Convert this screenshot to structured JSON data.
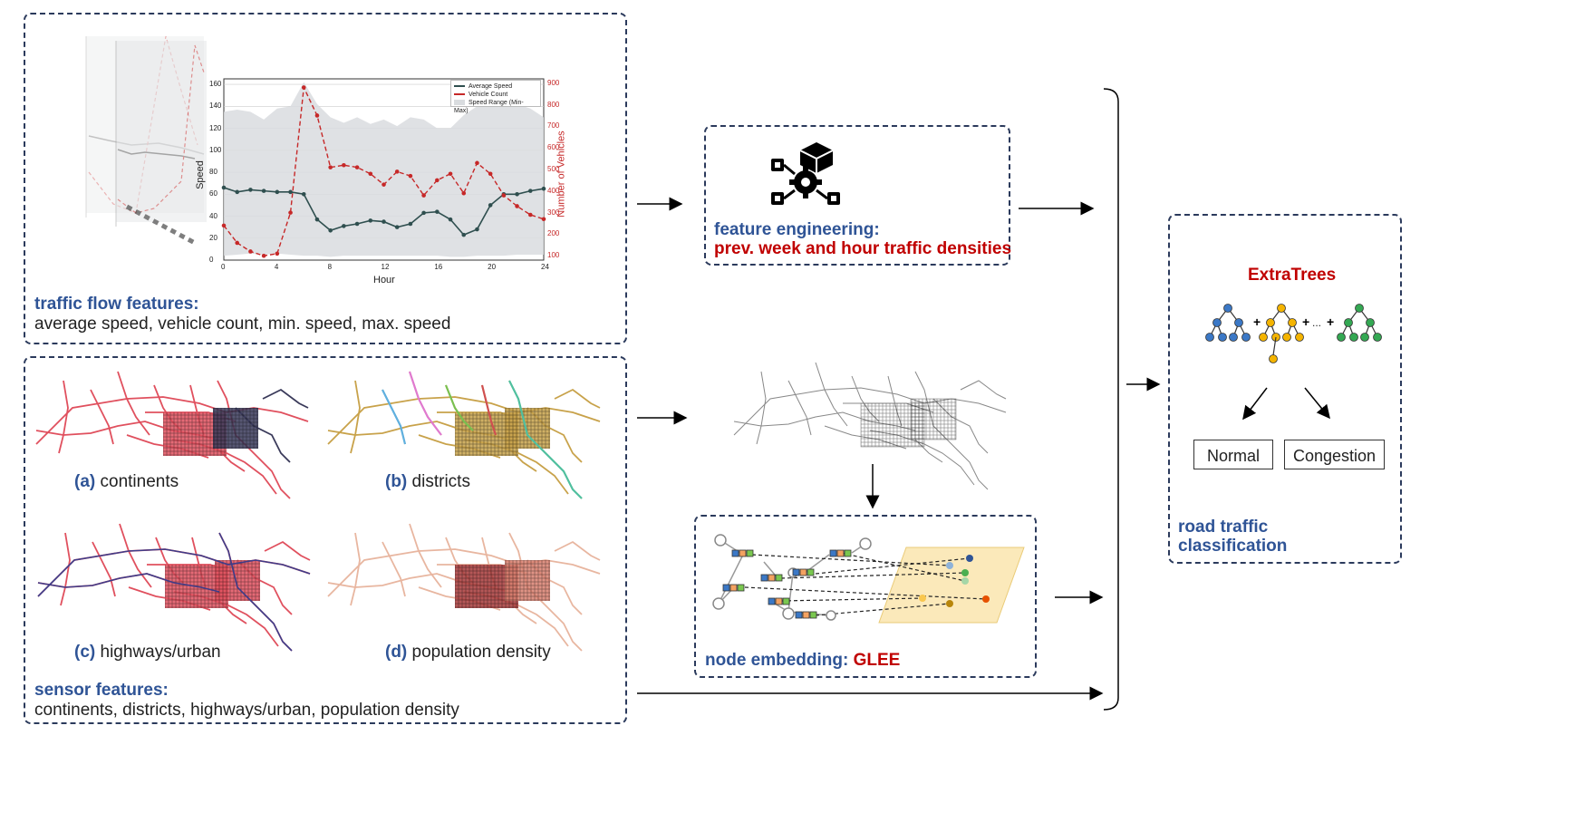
{
  "traffic_box": {
    "title": "traffic flow features:",
    "items": "average speed, vehicle count, min. speed, max. speed"
  },
  "feature_eng": {
    "title": "feature engineering:",
    "subtitle": "prev. week and hour traffic densities"
  },
  "sensor_box": {
    "title": "sensor features:",
    "items": "continents, districts, highways/urban, population density",
    "maps": [
      {
        "tag": "(a)",
        "label": "continents"
      },
      {
        "tag": "(b)",
        "label": "districts"
      },
      {
        "tag": "(c)",
        "label": "highways/urban"
      },
      {
        "tag": "(d)",
        "label": "population density"
      }
    ]
  },
  "node_embedding": {
    "title": "node embedding:",
    "method": "GLEE"
  },
  "classification": {
    "model": "ExtraTrees",
    "dots": "...",
    "class_normal": "Normal",
    "class_congestion": "Congestion",
    "title_line1": "road traffic",
    "title_line2": "classification"
  },
  "chart": {
    "xlabel": "Hour",
    "ylabel_left": "Speed",
    "ylabel_right": "Number of Vehicles",
    "x_ticks": [
      "0",
      "4",
      "8",
      "12",
      "16",
      "20",
      "24"
    ],
    "y_ticks_left": [
      "0",
      "20",
      "40",
      "60",
      "80",
      "100",
      "120",
      "140",
      "160"
    ],
    "y_ticks_right": [
      "100",
      "200",
      "300",
      "400",
      "500",
      "600",
      "700",
      "800",
      "900"
    ],
    "legend": [
      "Average Speed",
      "Vehicle Count",
      "Speed Range (Min-Max)"
    ],
    "colors": {
      "speed": "#2f4f4f",
      "count": "#c62828",
      "range": "#d9dcdf"
    }
  },
  "chart_data": {
    "type": "line",
    "xlabel": "Hour",
    "ylabel": "Speed",
    "y2label": "Number of Vehicles",
    "xlim": [
      0,
      24
    ],
    "ylim": [
      0,
      165
    ],
    "y2lim": [
      80,
      920
    ],
    "series": [
      {
        "name": "Average Speed",
        "axis": "left",
        "x": [
          0,
          1,
          2,
          3,
          4,
          5,
          6,
          7,
          8,
          9,
          10,
          11,
          12,
          13,
          14,
          15,
          16,
          17,
          18,
          19,
          20,
          21,
          22,
          23,
          24
        ],
        "values": [
          66,
          62,
          64,
          63,
          62,
          62,
          60,
          37,
          27,
          31,
          33,
          36,
          35,
          30,
          33,
          43,
          44,
          37,
          23,
          28,
          50,
          60,
          60,
          63,
          65
        ]
      },
      {
        "name": "Vehicle Count",
        "axis": "right",
        "x": [
          0,
          1,
          2,
          3,
          4,
          5,
          6,
          7,
          8,
          9,
          10,
          11,
          12,
          13,
          14,
          15,
          16,
          17,
          18,
          19,
          20,
          21,
          22,
          23,
          24
        ],
        "values": [
          240,
          160,
          120,
          100,
          110,
          300,
          880,
          750,
          510,
          520,
          510,
          480,
          430,
          490,
          470,
          380,
          450,
          480,
          390,
          530,
          480,
          380,
          330,
          290,
          270
        ]
      },
      {
        "name": "Speed Range (Min-Max)",
        "axis": "left",
        "x": [
          0,
          1,
          2,
          3,
          4,
          5,
          6,
          7,
          8,
          9,
          10,
          11,
          12,
          13,
          14,
          15,
          16,
          17,
          18,
          19,
          20,
          21,
          22,
          23,
          24
        ],
        "min": [
          4,
          5,
          6,
          5,
          6,
          5,
          4,
          4,
          3,
          4,
          4,
          4,
          4,
          4,
          4,
          4,
          4,
          3,
          3,
          4,
          4,
          4,
          5,
          5,
          5
        ],
        "max": [
          135,
          137,
          135,
          128,
          138,
          140,
          162,
          142,
          130,
          125,
          130,
          124,
          128,
          122,
          130,
          128,
          120,
          120,
          132,
          140,
          145,
          148,
          142,
          138,
          130
        ]
      }
    ]
  }
}
